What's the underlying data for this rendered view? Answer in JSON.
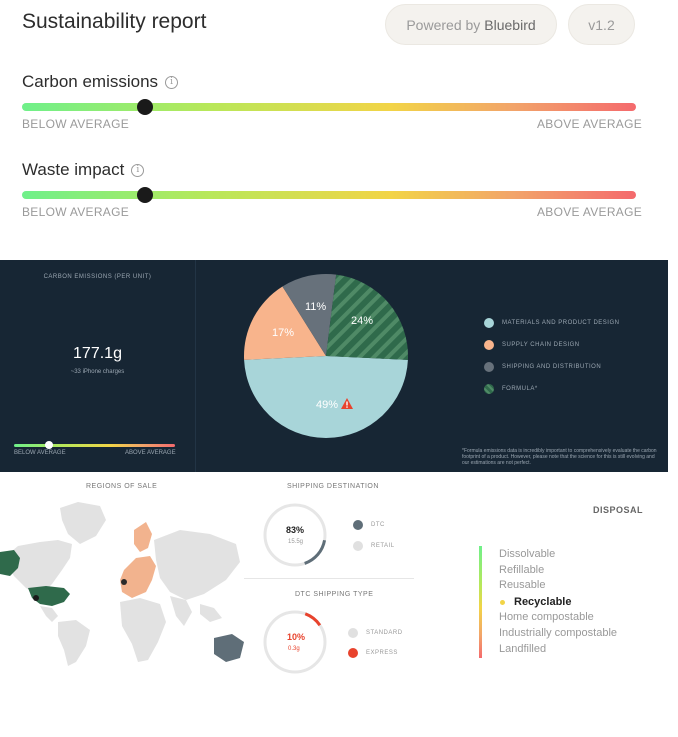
{
  "header": {
    "title": "Sustainability report",
    "powered_prefix": "Powered by",
    "powered_brand": "Bluebird",
    "version": "v1.2"
  },
  "metrics": [
    {
      "label": "Carbon emissions",
      "low_label": "BELOW AVERAGE",
      "high_label": "ABOVE AVERAGE",
      "position": 0.2
    },
    {
      "label": "Waste impact",
      "low_label": "BELOW AVERAGE",
      "high_label": "ABOVE AVERAGE",
      "position": 0.2
    }
  ],
  "carbon_panel": {
    "title": "CARBON EMISSIONS (PER UNIT)",
    "value": "177.1g",
    "subtitle": "~33 iPhone charges",
    "low_label": "BELOW AVERAGE",
    "high_label": "ABOVE AVERAGE",
    "position": 0.22,
    "footnote": "*Formula emissions data is incredibly important to comprehensively evaluate the carbon footprint of a product. However, please note that the science for this is still evolving and our estimations are not perfect."
  },
  "chart_data": {
    "type": "pie",
    "slices": [
      {
        "name": "MATERIALS AND PRODUCT DESIGN",
        "label": "49%",
        "value": 49,
        "color": "#a8d5d9",
        "warning": true
      },
      {
        "name": "SUPPLY CHAIN DESIGN",
        "label": "17%",
        "value": 17,
        "color": "#f8b48c"
      },
      {
        "name": "SHIPPING AND DISTRIBUTION",
        "label": "11%",
        "value": 11,
        "color": "#67717b"
      },
      {
        "name": "FORMULA*",
        "label": "24%",
        "value": 24,
        "color": "#2f6a4b",
        "pattern": "hatched"
      }
    ]
  },
  "regions": {
    "title": "REGIONS OF SALE",
    "highlight_colors": {
      "primary": "#2f6a4b",
      "secondary": "#f2b38e",
      "tertiary": "#5f6e78",
      "base": "#e2e2e2"
    }
  },
  "shipping_destination": {
    "title": "SHIPPING DESTINATION",
    "value": "83%",
    "sub": "15.5g",
    "fraction": 0.17,
    "legend": [
      {
        "label": "DTC",
        "color": "#5f6e78"
      },
      {
        "label": "RETAIL",
        "color": "#e0e0e0"
      }
    ]
  },
  "dtc_shipping": {
    "title": "DTC SHIPPING TYPE",
    "value": "10%",
    "sub": "0.3g",
    "fraction": 0.1,
    "legend": [
      {
        "label": "STANDARD",
        "color": "#e0e0e0"
      },
      {
        "label": "EXPRESS",
        "color": "#e8432d"
      }
    ]
  },
  "disposal": {
    "title": "DISPOSAL",
    "items": [
      "Dissolvable",
      "Refillable",
      "Reusable",
      "Recyclable",
      "Home compostable",
      "Industrially compostable",
      "Landfilled"
    ],
    "selected": "Recyclable"
  }
}
